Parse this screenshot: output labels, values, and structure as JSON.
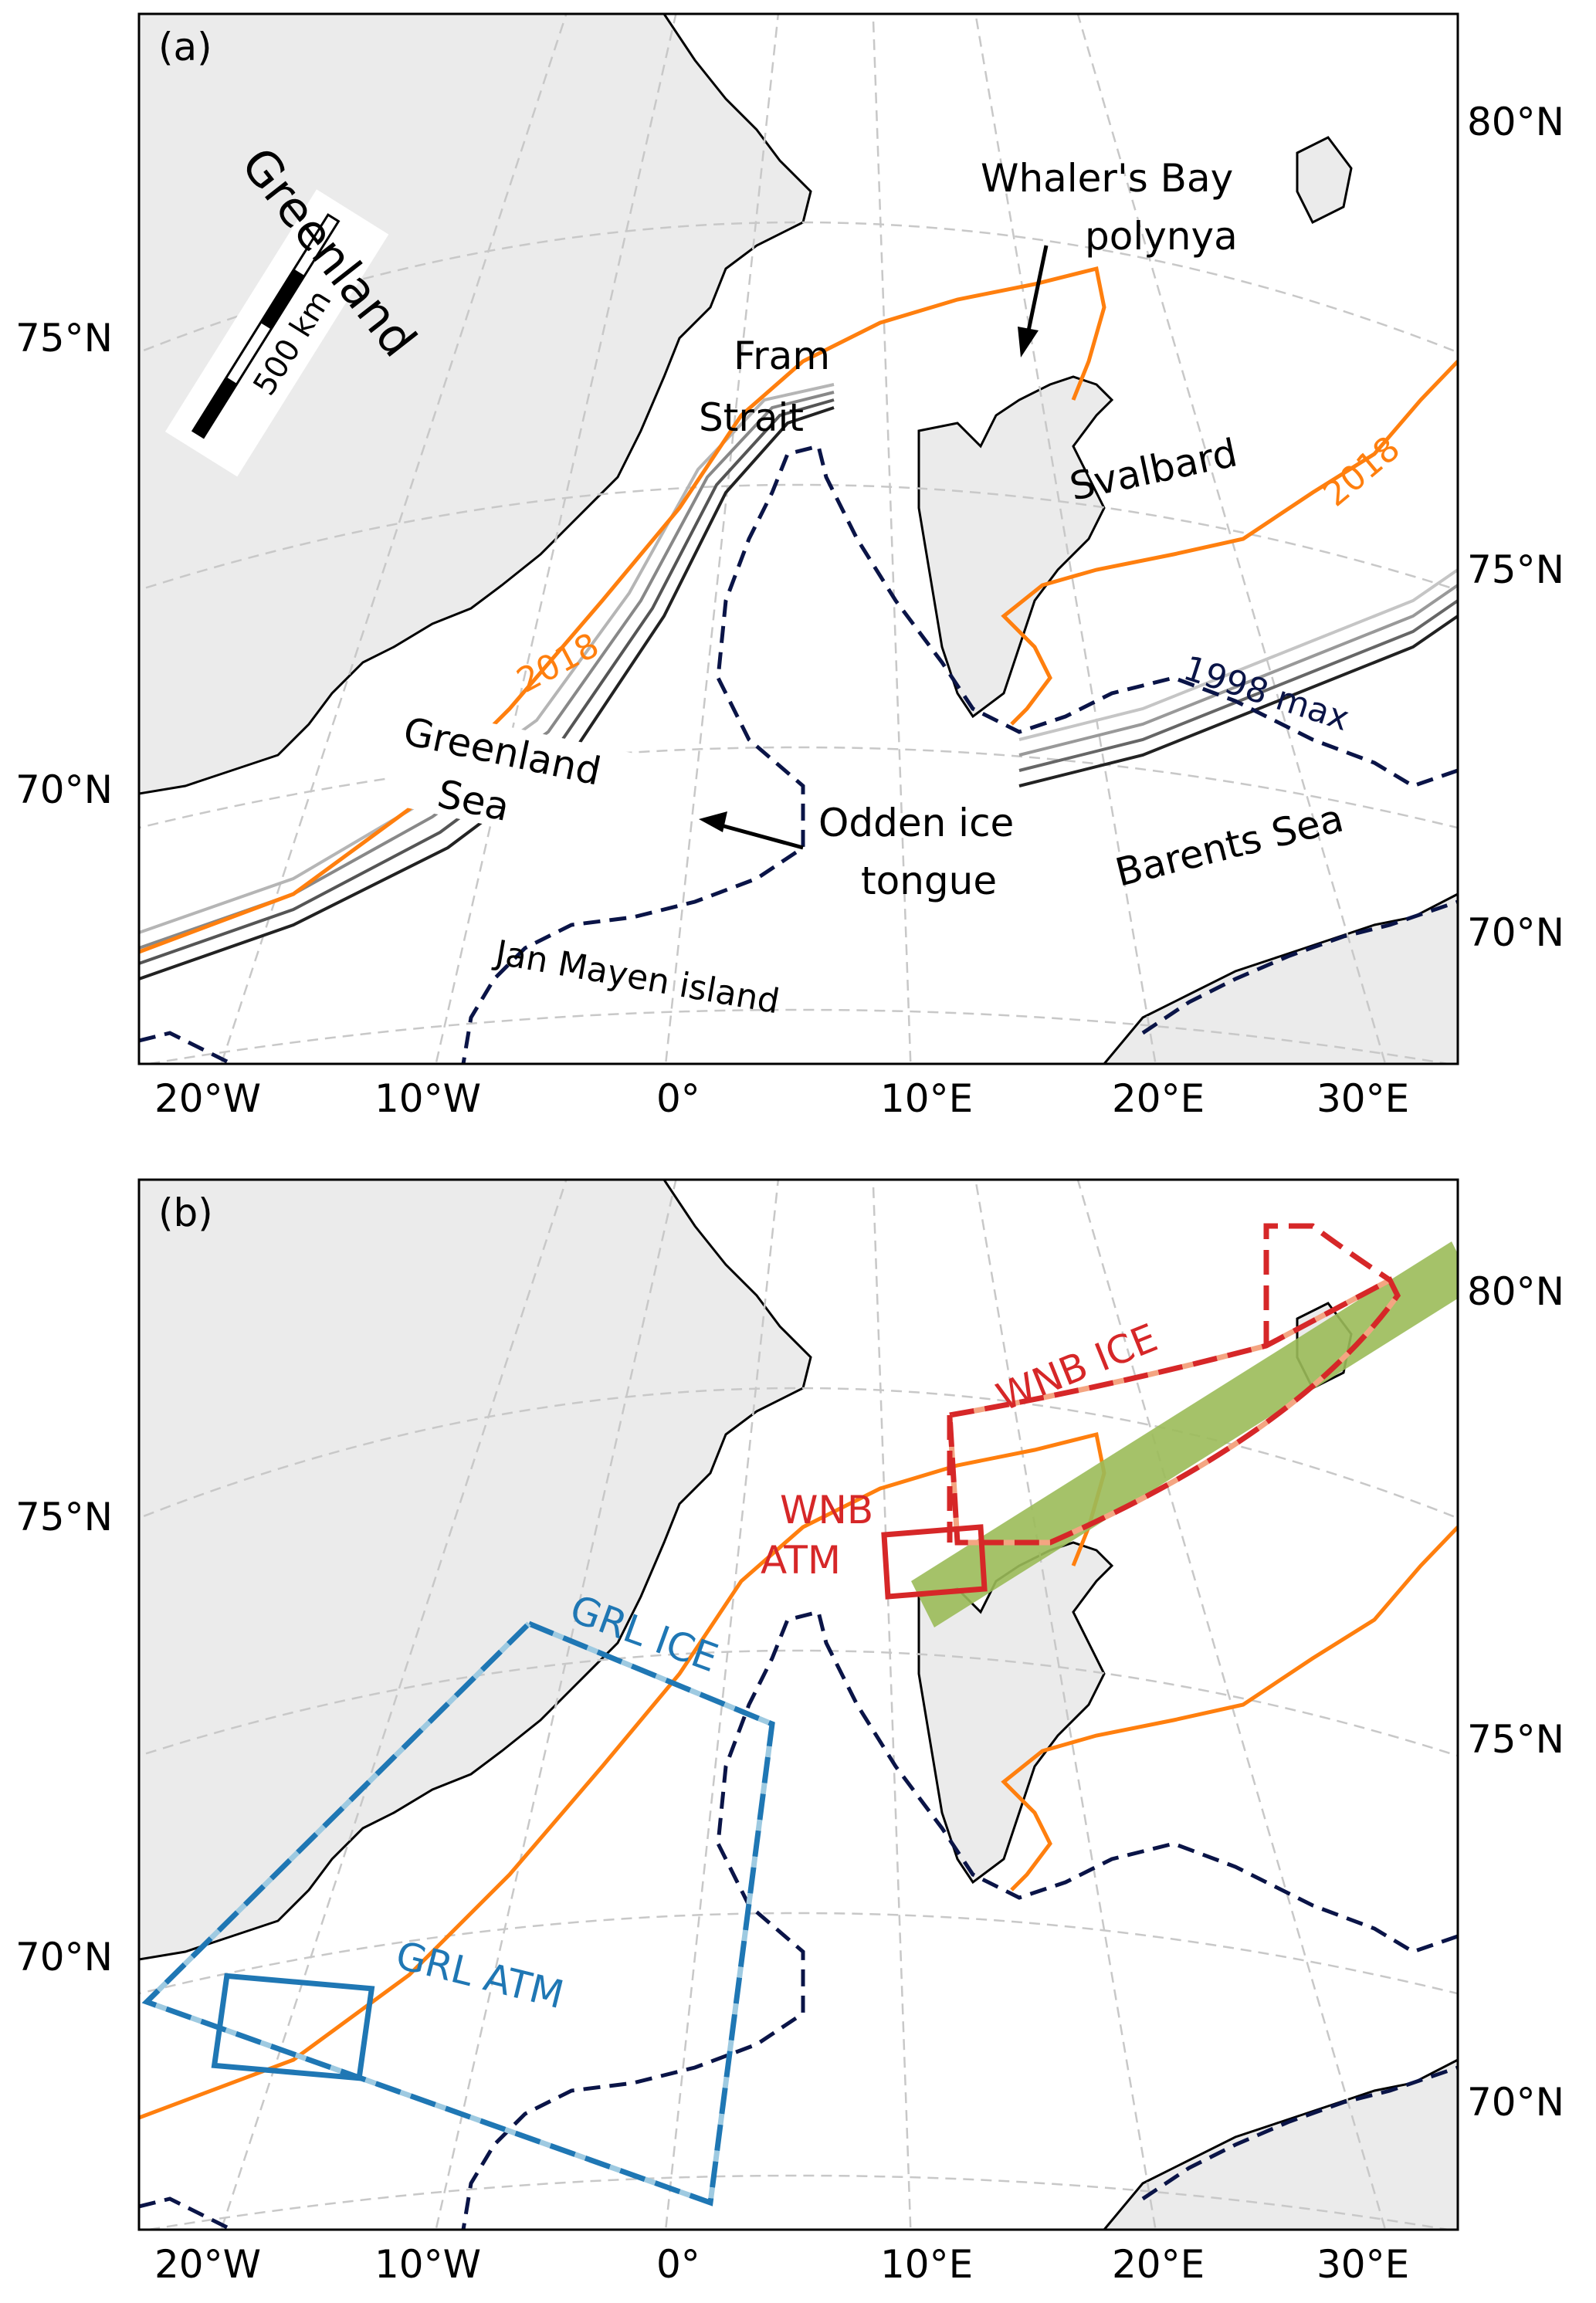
{
  "panel_a": {
    "letter": "(a)",
    "labels": {
      "greenland": "Greenland",
      "greenland_sea_1": "Greenland",
      "greenland_sea_2": "Sea",
      "fram_1": "Fram",
      "fram_2": "Strait",
      "whalers_1": "Whaler's Bay",
      "whalers_2": "polynya",
      "svalbard": "Svalbard",
      "odden_1": "Odden ice",
      "odden_2": "tongue",
      "barents": "Barents Sea",
      "jan_mayen": "Jan Mayen island",
      "y2018_a": "2018",
      "y2018_b": "2018",
      "max1998": "1998 max",
      "scale": "500 km"
    }
  },
  "panel_b": {
    "letter": "(b)",
    "labels": {
      "wnb_ice": "WNB ICE",
      "wnb_atm_1": "WNB",
      "wnb_atm_2": "ATM",
      "grl_ice": "GRL ICE",
      "grl_atm": "GRL ATM"
    }
  },
  "axes": {
    "lon_ticks": [
      "20°W",
      "10°W",
      "0°",
      "10°E",
      "20°E",
      "30°E"
    ],
    "lat_left": [
      "75°N",
      "70°N"
    ],
    "lat_right": [
      "80°N",
      "75°N",
      "70°N"
    ]
  },
  "colors": {
    "land": "#ebebeb",
    "ice_edge_2018": "#ff7f0e",
    "max_1998": "#0a1447",
    "wnb": "#d62728",
    "wnb_light": "#f4a582",
    "grl": "#1f77b4",
    "grl_light": "#9ecae1",
    "track": "#9bbb59",
    "grid": "#c8c8c8"
  }
}
